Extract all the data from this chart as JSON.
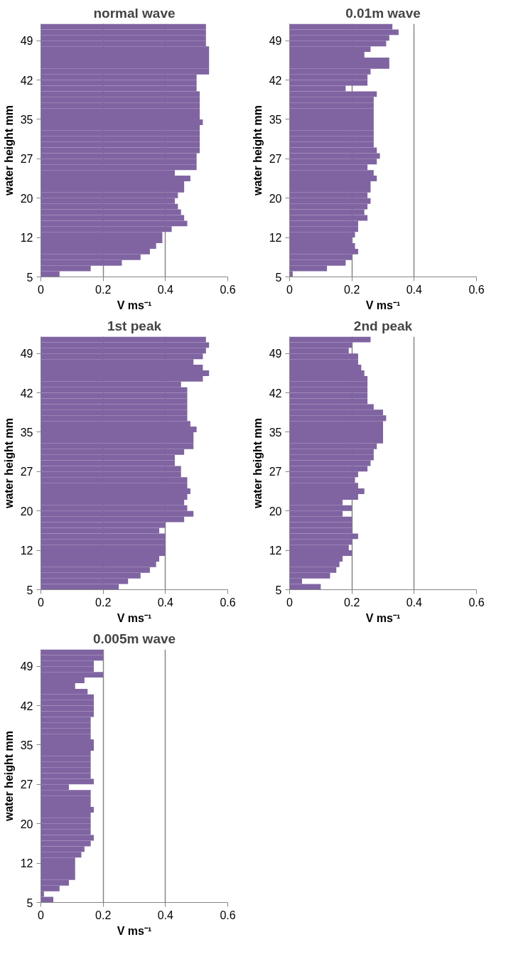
{
  "chart_data": [
    {
      "type": "bar",
      "orientation": "horizontal",
      "title": "normal wave",
      "xlabel": "V ms⁻¹",
      "ylabel": "water height mm",
      "color": "#8064a2",
      "grid": "x",
      "xlim": [
        0,
        0.6
      ],
      "xticks": [
        0,
        0.2,
        0.4,
        0.6
      ],
      "categories": [
        null,
        null,
        "49",
        null,
        null,
        null,
        null,
        null,
        null,
        "42",
        null,
        null,
        null,
        null,
        null,
        null,
        "35",
        null,
        null,
        null,
        null,
        null,
        null,
        "27",
        null,
        null,
        null,
        null,
        null,
        null,
        "20",
        null,
        null,
        null,
        null,
        null,
        null,
        "12",
        null,
        null,
        null,
        null,
        null,
        null,
        "5"
      ],
      "values": [
        0.53,
        0.53,
        0.53,
        0.53,
        0.54,
        0.54,
        0.54,
        0.54,
        0.54,
        0.5,
        0.5,
        0.5,
        0.51,
        0.51,
        0.51,
        0.51,
        0.51,
        0.52,
        0.51,
        0.51,
        0.51,
        0.51,
        0.51,
        0.5,
        0.5,
        0.5,
        0.43,
        0.48,
        0.46,
        0.46,
        0.44,
        0.43,
        0.44,
        0.45,
        0.46,
        0.47,
        0.42,
        0.39,
        0.39,
        0.37,
        0.35,
        0.32,
        0.26,
        0.16,
        0.06
      ]
    },
    {
      "type": "bar",
      "orientation": "horizontal",
      "title": "0.01m wave",
      "xlabel": "V ms⁻¹",
      "ylabel": "water height mm",
      "color": "#8064a2",
      "grid": "x",
      "xlim": [
        0,
        0.6
      ],
      "xticks": [
        0,
        0.2,
        0.4,
        0.6
      ],
      "categories": [
        null,
        null,
        "49",
        null,
        null,
        null,
        null,
        null,
        null,
        "42",
        null,
        null,
        null,
        null,
        null,
        null,
        "35",
        null,
        null,
        null,
        null,
        null,
        null,
        "27",
        null,
        null,
        null,
        null,
        null,
        null,
        "20",
        null,
        null,
        null,
        null,
        null,
        null,
        "12",
        null,
        null,
        null,
        null,
        null,
        null,
        "5"
      ],
      "values": [
        0.33,
        0.35,
        0.32,
        0.31,
        0.26,
        0.24,
        0.32,
        0.32,
        0.26,
        0.25,
        0.25,
        0.18,
        0.28,
        0.27,
        0.27,
        0.27,
        0.27,
        0.27,
        0.27,
        0.27,
        0.27,
        0.27,
        0.28,
        0.29,
        0.28,
        0.25,
        0.27,
        0.28,
        0.26,
        0.26,
        0.25,
        0.26,
        0.25,
        0.24,
        0.25,
        0.22,
        0.22,
        0.21,
        0.2,
        0.21,
        0.22,
        0.2,
        0.18,
        0.12,
        0.01
      ]
    },
    {
      "type": "bar",
      "orientation": "horizontal",
      "title": "1st peak",
      "xlabel": "V ms⁻¹",
      "ylabel": "water height mm",
      "color": "#8064a2",
      "grid": "x",
      "xlim": [
        0,
        0.6
      ],
      "xticks": [
        0,
        0.2,
        0.4,
        0.6
      ],
      "categories": [
        null,
        null,
        "49",
        null,
        null,
        null,
        null,
        null,
        null,
        "42",
        null,
        null,
        null,
        null,
        null,
        null,
        "35",
        null,
        null,
        null,
        null,
        null,
        null,
        "27",
        null,
        null,
        null,
        null,
        null,
        null,
        "20",
        null,
        null,
        null,
        null,
        null,
        null,
        "12",
        null,
        null,
        null,
        null,
        null,
        null,
        "5"
      ],
      "values": [
        0.53,
        0.54,
        0.53,
        0.52,
        0.49,
        0.52,
        0.54,
        0.52,
        0.45,
        0.47,
        0.47,
        0.47,
        0.47,
        0.47,
        0.47,
        0.48,
        0.5,
        0.49,
        0.49,
        0.49,
        0.46,
        0.43,
        0.43,
        0.45,
        0.45,
        0.47,
        0.47,
        0.48,
        0.47,
        0.46,
        0.47,
        0.49,
        0.46,
        0.4,
        0.38,
        0.4,
        0.4,
        0.4,
        0.4,
        0.38,
        0.37,
        0.35,
        0.32,
        0.28,
        0.25
      ]
    },
    {
      "type": "bar",
      "orientation": "horizontal",
      "title": "2nd peak",
      "xlabel": "V ms⁻¹",
      "ylabel": "water height mm",
      "color": "#8064a2",
      "grid": "x",
      "xlim": [
        0,
        0.6
      ],
      "xticks": [
        0,
        0.2,
        0.4,
        0.6
      ],
      "categories": [
        null,
        null,
        "49",
        null,
        null,
        null,
        null,
        null,
        null,
        "42",
        null,
        null,
        null,
        null,
        null,
        null,
        "35",
        null,
        null,
        null,
        null,
        null,
        null,
        "27",
        null,
        null,
        null,
        null,
        null,
        null,
        "20",
        null,
        null,
        null,
        null,
        null,
        null,
        "12",
        null,
        null,
        null,
        null,
        null,
        null,
        "5"
      ],
      "values": [
        0.26,
        0.2,
        0.19,
        0.22,
        0.22,
        0.23,
        0.24,
        0.25,
        0.25,
        0.25,
        0.25,
        0.25,
        0.27,
        0.3,
        0.31,
        0.3,
        0.3,
        0.3,
        0.3,
        0.28,
        0.27,
        0.27,
        0.26,
        0.25,
        0.22,
        0.21,
        0.22,
        0.24,
        0.22,
        0.17,
        0.2,
        0.17,
        0.2,
        0.2,
        0.2,
        0.22,
        0.2,
        0.19,
        0.2,
        0.17,
        0.16,
        0.15,
        0.13,
        0.04,
        0.1
      ]
    },
    {
      "type": "bar",
      "orientation": "horizontal",
      "title": "0.005m wave",
      "xlabel": "V ms⁻¹",
      "ylabel": "water height mm",
      "color": "#8064a2",
      "grid": "x",
      "xlim": [
        0,
        0.6
      ],
      "xticks": [
        0,
        0.2,
        0.4,
        0.6
      ],
      "categories": [
        null,
        null,
        "49",
        null,
        null,
        null,
        null,
        null,
        null,
        "42",
        null,
        null,
        null,
        null,
        null,
        null,
        "35",
        null,
        null,
        null,
        null,
        null,
        null,
        "27",
        null,
        null,
        null,
        null,
        null,
        null,
        "20",
        null,
        null,
        null,
        null,
        null,
        null,
        "12",
        null,
        null,
        null,
        null,
        null,
        null,
        "5"
      ],
      "values": [
        0.2,
        0.2,
        0.17,
        0.17,
        0.2,
        0.14,
        0.11,
        0.15,
        0.17,
        0.17,
        0.17,
        0.17,
        0.16,
        0.16,
        0.16,
        0.16,
        0.17,
        0.17,
        0.16,
        0.16,
        0.16,
        0.16,
        0.16,
        0.17,
        0.09,
        0.16,
        0.16,
        0.16,
        0.17,
        0.16,
        0.16,
        0.16,
        0.16,
        0.17,
        0.16,
        0.14,
        0.13,
        0.11,
        0.11,
        0.11,
        0.11,
        0.09,
        0.06,
        0.01,
        0.04
      ]
    }
  ]
}
